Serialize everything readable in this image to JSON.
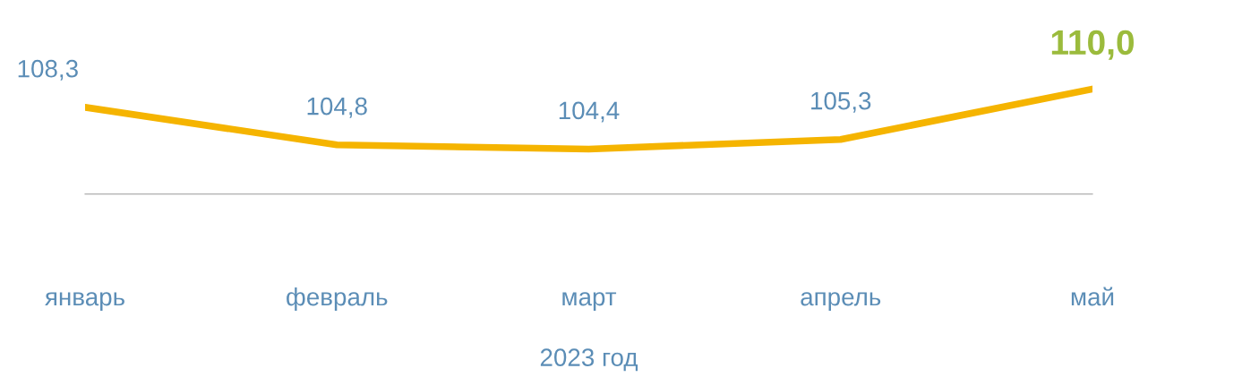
{
  "chart_data": {
    "type": "line",
    "xlabel": "2023 год",
    "categories": [
      "январь",
      "февраль",
      "март",
      "апрель",
      "май"
    ],
    "series": [
      {
        "color": "#f5b400",
        "values": [
          108.3,
          104.8,
          104.4,
          105.3,
          110.0
        ],
        "value_labels": [
          "108,3",
          "104,8",
          "104,4",
          "105,3",
          "110,0"
        ]
      }
    ],
    "grid": false,
    "legend": false,
    "marker": "none",
    "line_style": "solid"
  }
}
